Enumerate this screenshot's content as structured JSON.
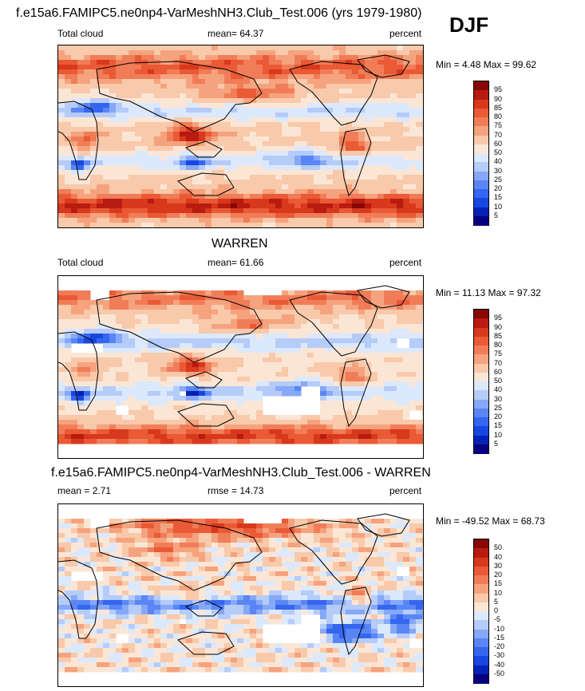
{
  "season": "DJF",
  "colors": [
    "#08007f",
    "#0522b5",
    "#1747e0",
    "#3566f0",
    "#5a86f5",
    "#86a8f7",
    "#b5ccf9",
    "#dce8fb",
    "#fbe6d6",
    "#f8c9aa",
    "#f5a37e",
    "#f07d58",
    "#e95a35",
    "#d8381c",
    "#b81b10",
    "#870806"
  ],
  "panels": [
    {
      "title": "f.e15a6.FAMIPC5.ne0np4-VarMeshNH3.Club_Test.006 (yrs 1979-1980)",
      "left_label": "Total cloud",
      "center_label": "mean=  64.37",
      "right_label": "percent",
      "minmax": "Min =   4.48 Max =  99.62",
      "colorbar_labels": [
        "95",
        "90",
        "85",
        "80",
        "75",
        "70",
        "60",
        "50",
        "40",
        "30",
        "25",
        "20",
        "15",
        "10",
        "5"
      ],
      "missing_data": false,
      "field": "model"
    },
    {
      "title": "WARREN",
      "left_label": "Total cloud",
      "center_label": "mean=  61.66",
      "right_label": "percent",
      "minmax": "Min =  11.13 Max =  97.32",
      "colorbar_labels": [
        "95",
        "90",
        "85",
        "80",
        "75",
        "70",
        "60",
        "50",
        "40",
        "30",
        "25",
        "20",
        "15",
        "10",
        "5"
      ],
      "missing_data": true,
      "field": "obs"
    },
    {
      "title": "f.e15a6.FAMIPC5.ne0np4-VarMeshNH3.Club_Test.006 - WARREN",
      "left_label": "mean =   2.71",
      "center_label": "rmse =  14.73",
      "right_label": "percent",
      "minmax": "Min = -49.52 Max =  68.73",
      "colorbar_labels": [
        "50",
        "40",
        "30",
        "20",
        "15",
        "10",
        "5",
        "0",
        "-5",
        "-10",
        "-15",
        "-20",
        "-30",
        "-40",
        "-50"
      ],
      "missing_data": true,
      "field": "diff"
    }
  ],
  "chart_data": [
    {
      "type": "heatmap",
      "title": "f.e15a6.FAMIPC5.ne0np4-VarMeshNH3.Club_Test.006 (yrs 1979-1980)",
      "variable": "Total cloud",
      "units": "percent",
      "mean": 64.37,
      "min": 4.48,
      "max": 99.62,
      "levels": [
        5,
        10,
        15,
        20,
        25,
        30,
        40,
        50,
        60,
        70,
        75,
        80,
        85,
        90,
        95
      ]
    },
    {
      "type": "heatmap",
      "title": "WARREN",
      "variable": "Total cloud",
      "units": "percent",
      "mean": 61.66,
      "min": 11.13,
      "max": 97.32,
      "levels": [
        5,
        10,
        15,
        20,
        25,
        30,
        40,
        50,
        60,
        70,
        75,
        80,
        85,
        90,
        95
      ]
    },
    {
      "type": "heatmap",
      "title": "f.e15a6.FAMIPC5.ne0np4-VarMeshNH3.Club_Test.006 - WARREN",
      "units": "percent",
      "mean": 2.71,
      "rmse": 14.73,
      "min": -49.52,
      "max": 68.73,
      "levels": [
        -50,
        -40,
        -30,
        -20,
        -15,
        -10,
        -5,
        0,
        5,
        10,
        15,
        20,
        30,
        40,
        50
      ]
    }
  ]
}
